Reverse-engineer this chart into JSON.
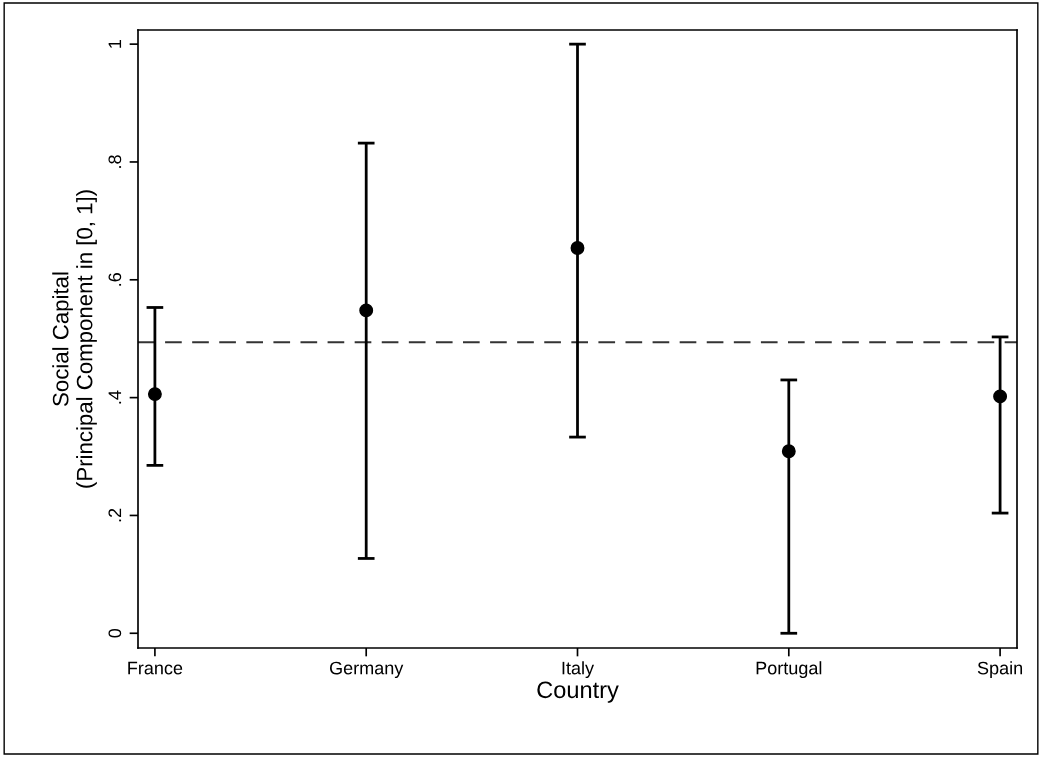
{
  "chart_data": {
    "type": "scatter",
    "xlabel": "Country",
    "ylabel": "Social Capital\n(Principal Component in [0, 1])",
    "categories": [
      "France",
      "Germany",
      "Italy",
      "Portugal",
      "Spain"
    ],
    "values": [
      0.406,
      0.548,
      0.654,
      0.309,
      0.402
    ],
    "errors": [
      [
        0.285,
        0.553
      ],
      [
        0.127,
        0.832
      ],
      [
        0.333,
        1.0
      ],
      [
        0.0,
        0.43
      ],
      [
        0.204,
        0.503
      ]
    ],
    "color": "#000000",
    "marker": "circle",
    "grid": false,
    "legend": false,
    "ylim": [
      -0.025,
      1.024
    ],
    "yticks": [
      {
        "value": 0,
        "label": "0"
      },
      {
        "value": 0.2,
        "label": ".2"
      },
      {
        "value": 0.4,
        "label": ".4"
      },
      {
        "value": 0.6,
        "label": ".6"
      },
      {
        "value": 0.8,
        "label": ".8"
      },
      {
        "value": 1,
        "label": "1"
      }
    ],
    "ref_lines": [
      {
        "axis": "y",
        "value": 0.494,
        "label": null,
        "color": "#333333",
        "line_style": "dashed"
      }
    ]
  }
}
